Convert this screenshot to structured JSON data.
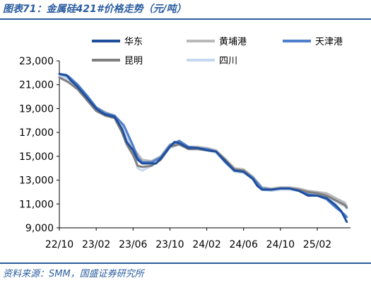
{
  "figure": {
    "title": "图表71：金属硅421#价格走势（元/吨）",
    "source": "资料来源：SMM，国盛证券研究所"
  },
  "chart_data": {
    "type": "line",
    "title": "",
    "xlabel": "",
    "ylabel": "",
    "ylim": [
      9000,
      23000
    ],
    "y_ticks": [
      "9,000",
      "11,000",
      "13,000",
      "15,000",
      "17,000",
      "19,000",
      "21,000",
      "23,000"
    ],
    "y_tick_values": [
      9000,
      11000,
      13000,
      15000,
      17000,
      19000,
      21000,
      23000
    ],
    "x_tick_labels": [
      "22/10",
      "23/02",
      "23/06",
      "23/10",
      "24/02",
      "24/06",
      "24/10",
      "25/02"
    ],
    "x_tick_positions": [
      0,
      4,
      8,
      12,
      16,
      20,
      24,
      28
    ],
    "x_range": [
      0,
      31.3
    ],
    "grid": false,
    "legend_position": "top",
    "series": [
      {
        "name": "华东",
        "color": "#1f4e9c",
        "points": [
          [
            0,
            21900
          ],
          [
            0.8,
            21800
          ],
          [
            1.2,
            21400
          ],
          [
            2,
            20800
          ],
          [
            3,
            19900
          ],
          [
            4,
            19000
          ],
          [
            4.5,
            18700
          ],
          [
            5,
            18500
          ],
          [
            6,
            18300
          ],
          [
            6.8,
            17300
          ],
          [
            7.3,
            16200
          ],
          [
            8,
            15500
          ],
          [
            8.5,
            14700
          ],
          [
            9,
            14400
          ],
          [
            10,
            14400
          ],
          [
            10.5,
            14400
          ],
          [
            11,
            14800
          ],
          [
            12,
            15800
          ],
          [
            12.5,
            16200
          ],
          [
            13,
            16100
          ],
          [
            14,
            15700
          ],
          [
            15,
            15700
          ],
          [
            16,
            15500
          ],
          [
            17,
            15400
          ],
          [
            18,
            14600
          ],
          [
            19,
            13800
          ],
          [
            20,
            13700
          ],
          [
            21,
            13100
          ],
          [
            21.5,
            12500
          ],
          [
            22,
            12200
          ],
          [
            23,
            12200
          ],
          [
            24,
            12300
          ],
          [
            25,
            12300
          ],
          [
            26,
            12100
          ],
          [
            26.5,
            11900
          ],
          [
            27,
            11700
          ],
          [
            28,
            11700
          ],
          [
            29,
            11500
          ],
          [
            30,
            10900
          ],
          [
            30.6,
            10400
          ],
          [
            31,
            9800
          ],
          [
            31.2,
            9500
          ]
        ]
      },
      {
        "name": "黄埔港",
        "color": "#b9b9b9",
        "points": [
          [
            0,
            21700
          ],
          [
            1,
            21500
          ],
          [
            2,
            20900
          ],
          [
            3,
            20000
          ],
          [
            4,
            19100
          ],
          [
            5,
            18700
          ],
          [
            6,
            18400
          ],
          [
            7,
            17400
          ],
          [
            8,
            15700
          ],
          [
            9,
            14700
          ],
          [
            10,
            14600
          ],
          [
            11,
            15000
          ],
          [
            12,
            16000
          ],
          [
            13,
            16200
          ],
          [
            14,
            15800
          ],
          [
            15,
            15800
          ],
          [
            16,
            15700
          ],
          [
            17,
            15500
          ],
          [
            18,
            14800
          ],
          [
            19,
            14000
          ],
          [
            20,
            13900
          ],
          [
            21,
            13300
          ],
          [
            22,
            12400
          ],
          [
            23,
            12300
          ],
          [
            24,
            12400
          ],
          [
            25,
            12400
          ],
          [
            26,
            12300
          ],
          [
            27,
            12100
          ],
          [
            28,
            12000
          ],
          [
            29,
            11900
          ],
          [
            30,
            11500
          ],
          [
            31,
            11100
          ],
          [
            31.2,
            10800
          ]
        ]
      },
      {
        "name": "天津港",
        "color": "#4f7fcb",
        "points": [
          [
            0,
            21900
          ],
          [
            1,
            21700
          ],
          [
            2,
            21000
          ],
          [
            3,
            20100
          ],
          [
            4,
            19100
          ],
          [
            5,
            18600
          ],
          [
            6,
            18400
          ],
          [
            7,
            17600
          ],
          [
            8,
            15900
          ],
          [
            8.5,
            14900
          ],
          [
            9,
            14500
          ],
          [
            10,
            14500
          ],
          [
            11,
            14900
          ],
          [
            12,
            15900
          ],
          [
            13,
            16300
          ],
          [
            14,
            15800
          ],
          [
            15,
            15700
          ],
          [
            16,
            15600
          ],
          [
            17,
            15400
          ],
          [
            18,
            14500
          ],
          [
            19,
            13800
          ],
          [
            20,
            13700
          ],
          [
            21,
            13200
          ],
          [
            22,
            12300
          ],
          [
            23,
            12200
          ],
          [
            24,
            12300
          ],
          [
            25,
            12300
          ],
          [
            26,
            12100
          ],
          [
            27,
            11800
          ],
          [
            28,
            11700
          ],
          [
            29,
            11400
          ],
          [
            30,
            10700
          ],
          [
            31,
            10100
          ],
          [
            31.2,
            9900
          ]
        ]
      },
      {
        "name": "昆明",
        "color": "#7f7f7f",
        "points": [
          [
            0,
            21600
          ],
          [
            1,
            21200
          ],
          [
            2,
            20600
          ],
          [
            3,
            19700
          ],
          [
            4,
            18800
          ],
          [
            5,
            18400
          ],
          [
            6,
            18200
          ],
          [
            6.8,
            17000
          ],
          [
            7.3,
            16000
          ],
          [
            8,
            15100
          ],
          [
            8.5,
            14200
          ],
          [
            9,
            14100
          ],
          [
            10,
            14200
          ],
          [
            11,
            14700
          ],
          [
            12,
            15800
          ],
          [
            13,
            16000
          ],
          [
            14,
            15600
          ],
          [
            15,
            15600
          ],
          [
            16,
            15500
          ],
          [
            17,
            15400
          ],
          [
            18,
            14700
          ],
          [
            19,
            13900
          ],
          [
            20,
            13800
          ],
          [
            21,
            13200
          ],
          [
            22,
            12300
          ],
          [
            23,
            12200
          ],
          [
            24,
            12300
          ],
          [
            25,
            12300
          ],
          [
            26,
            12200
          ],
          [
            27,
            12000
          ],
          [
            28,
            11900
          ],
          [
            29,
            11700
          ],
          [
            30,
            11300
          ],
          [
            31,
            10900
          ],
          [
            31.2,
            10700
          ]
        ]
      },
      {
        "name": "四川",
        "color": "#c5d8ef",
        "points": [
          [
            0,
            21800
          ],
          [
            1,
            21400
          ],
          [
            2,
            20800
          ],
          [
            3,
            19800
          ],
          [
            4,
            18900
          ],
          [
            5,
            18500
          ],
          [
            6,
            18200
          ],
          [
            7,
            17200
          ],
          [
            8,
            15300
          ],
          [
            8.5,
            14000
          ],
          [
            9,
            13800
          ],
          [
            10,
            14200
          ],
          [
            11,
            14700
          ],
          [
            12,
            15700
          ],
          [
            13,
            16000
          ],
          [
            14,
            15600
          ],
          [
            15,
            15600
          ],
          [
            16,
            15500
          ],
          [
            17,
            15300
          ],
          [
            18,
            14500
          ],
          [
            19,
            13700
          ],
          [
            20,
            13600
          ],
          [
            21,
            13100
          ],
          [
            22,
            12200
          ],
          [
            23,
            12100
          ],
          [
            24,
            12200
          ],
          [
            25,
            12200
          ],
          [
            26,
            12100
          ],
          [
            27,
            11900
          ],
          [
            28,
            11800
          ],
          [
            29,
            11600
          ],
          [
            30,
            11200
          ],
          [
            31,
            10800
          ],
          [
            31.2,
            10600
          ]
        ]
      }
    ]
  }
}
